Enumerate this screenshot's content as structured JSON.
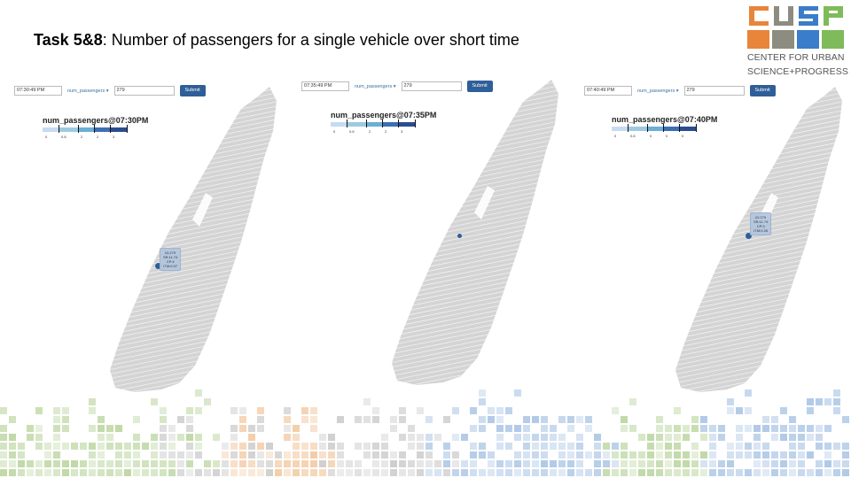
{
  "slide": {
    "title_bold": "Task 5&8",
    "title_rest": ": Number of passengers for a single vehicle over short time"
  },
  "logo": {
    "letters": "CUSP",
    "tagline_1": "CENTER FOR URBAN",
    "tagline_2": "SCIENCE+PROGRESS",
    "colors": [
      "#e8853a",
      "#8c8c80",
      "#3a7dc9",
      "#7fbb5a"
    ]
  },
  "panels": [
    {
      "time_value": "07:30:49 PM",
      "field": "num_passengers",
      "vehicle_value": "279",
      "submit_label": "Submit",
      "legend_title": "num_passengers@07:30PM",
      "ticks": [
        "0",
        "0.8",
        "2",
        "2",
        "3"
      ],
      "tooltip": {
        "visible": true,
        "lines": [
          "ID:279",
          "SR:11.74",
          "CP:4",
          "ITM:0.07"
        ]
      }
    },
    {
      "time_value": "07:35:49 PM",
      "field": "num_passengers",
      "vehicle_value": "279",
      "submit_label": "Submit",
      "legend_title": "num_passengers@07:35PM",
      "ticks": [
        "0",
        "0.6",
        "2",
        "2",
        "3"
      ],
      "tooltip": {
        "visible": false,
        "lines": []
      }
    },
    {
      "time_value": "07:40:49 PM",
      "field": "num_passengers",
      "vehicle_value": "279",
      "submit_label": "Submit",
      "legend_title": "num_passengers@07:40PM",
      "ticks": [
        "0",
        "0.8",
        "0",
        "0",
        "0"
      ],
      "tooltip": {
        "visible": true,
        "lines": [
          "ID:279",
          "SR:11.79",
          "CP:3",
          "ITM:0.26"
        ]
      }
    }
  ],
  "colors": {
    "map_fill": "#d4d4d4",
    "marker": "#2f5f98",
    "legend_ramp": [
      "#c6dbef",
      "#9ecae1",
      "#6baed6",
      "#3c6fb0",
      "#2a4d8f"
    ]
  }
}
